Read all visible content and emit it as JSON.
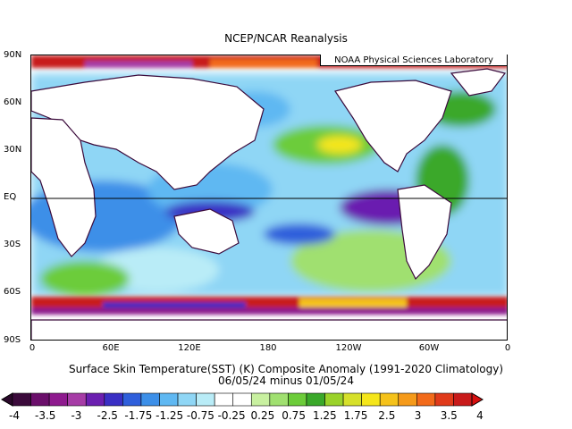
{
  "title": "NCEP/NCAR Reanalysis",
  "credit": "NOAA Physical Sciences Laboratory",
  "y_axis_labels": [
    "90N",
    "60N",
    "30N",
    "EQ",
    "30S",
    "60S",
    "90S"
  ],
  "x_axis_labels": [
    "0",
    "60E",
    "120E",
    "180",
    "120W",
    "60W",
    "0"
  ],
  "caption_line1": "Surface Skin Temperature(SST) (K) Composite Anomaly (1991-2020 Climatology)",
  "caption_line2": "06/05/24 minus 01/05/24",
  "colorbar": {
    "labels": [
      "-4",
      "-3.5",
      "-3",
      "-2.5",
      "-1.75",
      "-1.25",
      "-0.75",
      "-0.25",
      "0.25",
      "0.75",
      "1.25",
      "1.75",
      "2.5",
      "3",
      "3.5",
      "4"
    ],
    "colors": [
      "#3b0a3b",
      "#6b0f6b",
      "#8e1a8e",
      "#a63ca6",
      "#6b1fb0",
      "#3a2fc4",
      "#2f5fdb",
      "#3c8fe8",
      "#5fb8f2",
      "#8fd6f5",
      "#b9ecf7",
      "#ffffff",
      "#ffffff",
      "#c8f0a0",
      "#a0e070",
      "#6ccc3a",
      "#3aa82a",
      "#9ad22a",
      "#d6e02a",
      "#f5e61a",
      "#f5c21a",
      "#f59a1a",
      "#f26a1a",
      "#e03a1a",
      "#c81a1a"
    ],
    "underflow_color": "#2a082a",
    "overflow_color": "#d61010"
  }
}
